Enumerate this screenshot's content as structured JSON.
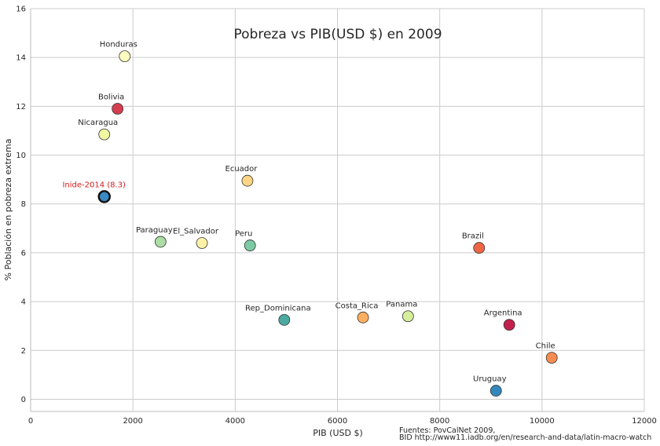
{
  "chart_data": {
    "type": "scatter",
    "title": "Pobreza vs PIB(USD $) en 2009",
    "xlabel": "PIB (USD $)",
    "ylabel": "% Población en pobreza extrema",
    "xlim": [
      0,
      12000
    ],
    "ylim": [
      -0.5,
      16
    ],
    "xticks": [
      "0",
      "2000",
      "4000",
      "6000",
      "8000",
      "10000",
      "12000"
    ],
    "yticks": [
      "0",
      "2",
      "4",
      "6",
      "8",
      "10",
      "12",
      "14",
      "16"
    ],
    "grid": true,
    "points": [
      {
        "label": "Honduras",
        "x": 1840,
        "y": 14.05,
        "color": "#ffffbf"
      },
      {
        "label": "Bolivia",
        "x": 1700,
        "y": 11.9,
        "color": "#d53e4f"
      },
      {
        "label": "Nicaragua",
        "x": 1440,
        "y": 10.85,
        "color": "#f0f8a0"
      },
      {
        "label": "Ecuador",
        "x": 4240,
        "y": 8.95,
        "color": "#fed585"
      },
      {
        "label": "Paraguay",
        "x": 2540,
        "y": 6.45,
        "color": "#abdda4"
      },
      {
        "label": "El_Salvador",
        "x": 3350,
        "y": 6.4,
        "color": "#fff2a8"
      },
      {
        "label": "Peru",
        "x": 4290,
        "y": 6.3,
        "color": "#7dcba4"
      },
      {
        "label": "Brazil",
        "x": 8770,
        "y": 6.2,
        "color": "#ef6645"
      },
      {
        "label": "Rep_Dominicana",
        "x": 4960,
        "y": 3.25,
        "color": "#4aaa9f"
      },
      {
        "label": "Costa_Rica",
        "x": 6500,
        "y": 3.35,
        "color": "#fdae61"
      },
      {
        "label": "Panama",
        "x": 7380,
        "y": 3.4,
        "color": "#d5ee9b"
      },
      {
        "label": "Argentina",
        "x": 9360,
        "y": 3.05,
        "color": "#c2214e"
      },
      {
        "label": "Chile",
        "x": 10190,
        "y": 1.7,
        "color": "#f88d52"
      },
      {
        "label": "Uruguay",
        "x": 9100,
        "y": 0.35,
        "color": "#3288bd"
      }
    ],
    "highlight": {
      "label": "Inide-2014 (8.3)",
      "x": 1440,
      "y": 8.3,
      "color": "#3b8ac4",
      "label_color": "#d7191c"
    },
    "source_lines": [
      "Fuentes: PovCalNet 2009,",
      "BID http://www11.iadb.org/en/research-and-data/latin-macro-watch"
    ]
  }
}
